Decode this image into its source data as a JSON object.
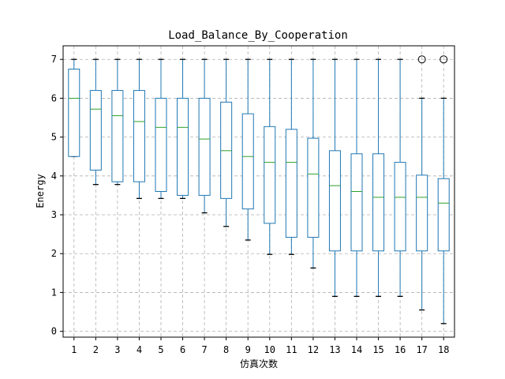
{
  "chart_data": {
    "type": "box",
    "title": "Load_Balance_By_Cooperation",
    "xlabel": "仿真次数",
    "ylabel": "Energy",
    "ylim": [
      -0.15,
      7.35
    ],
    "yticks": [
      0,
      1,
      2,
      3,
      4,
      5,
      6,
      7
    ],
    "grid": true,
    "grid_style": "dashed",
    "categories": [
      "1",
      "2",
      "3",
      "4",
      "5",
      "6",
      "7",
      "8",
      "9",
      "10",
      "11",
      "12",
      "13",
      "14",
      "15",
      "16",
      "17",
      "18"
    ],
    "boxes": [
      {
        "whislo": 4.5,
        "q1": 4.5,
        "med": 6.0,
        "q3": 6.75,
        "whishi": 7.0,
        "fliers": []
      },
      {
        "whislo": 3.78,
        "q1": 4.15,
        "med": 5.72,
        "q3": 6.2,
        "whishi": 7.0,
        "fliers": []
      },
      {
        "whislo": 3.78,
        "q1": 3.85,
        "med": 5.55,
        "q3": 6.2,
        "whishi": 7.0,
        "fliers": []
      },
      {
        "whislo": 3.42,
        "q1": 3.85,
        "med": 5.4,
        "q3": 6.2,
        "whishi": 7.0,
        "fliers": []
      },
      {
        "whislo": 3.42,
        "q1": 3.6,
        "med": 5.25,
        "q3": 6.0,
        "whishi": 7.0,
        "fliers": []
      },
      {
        "whislo": 3.42,
        "q1": 3.5,
        "med": 5.25,
        "q3": 6.0,
        "whishi": 7.0,
        "fliers": []
      },
      {
        "whislo": 3.05,
        "q1": 3.5,
        "med": 4.95,
        "q3": 6.0,
        "whishi": 7.0,
        "fliers": []
      },
      {
        "whislo": 2.7,
        "q1": 3.42,
        "med": 4.65,
        "q3": 5.9,
        "whishi": 7.0,
        "fliers": []
      },
      {
        "whislo": 2.35,
        "q1": 3.15,
        "med": 4.5,
        "q3": 5.6,
        "whishi": 7.0,
        "fliers": []
      },
      {
        "whislo": 1.98,
        "q1": 2.78,
        "med": 4.35,
        "q3": 5.27,
        "whishi": 7.0,
        "fliers": []
      },
      {
        "whislo": 1.98,
        "q1": 2.42,
        "med": 4.35,
        "q3": 5.2,
        "whishi": 7.0,
        "fliers": []
      },
      {
        "whislo": 1.63,
        "q1": 2.42,
        "med": 4.05,
        "q3": 4.97,
        "whishi": 7.0,
        "fliers": []
      },
      {
        "whislo": 0.9,
        "q1": 2.07,
        "med": 3.75,
        "q3": 4.65,
        "whishi": 7.0,
        "fliers": []
      },
      {
        "whislo": 0.9,
        "q1": 2.07,
        "med": 3.6,
        "q3": 4.57,
        "whishi": 7.0,
        "fliers": []
      },
      {
        "whislo": 0.9,
        "q1": 2.07,
        "med": 3.45,
        "q3": 4.57,
        "whishi": 7.0,
        "fliers": []
      },
      {
        "whislo": 0.9,
        "q1": 2.07,
        "med": 3.45,
        "q3": 4.35,
        "whishi": 7.0,
        "fliers": []
      },
      {
        "whislo": 0.55,
        "q1": 2.07,
        "med": 3.45,
        "q3": 4.02,
        "whishi": 6.0,
        "fliers": [
          7.0
        ]
      },
      {
        "whislo": 0.2,
        "q1": 2.07,
        "med": 3.3,
        "q3": 3.93,
        "whishi": 6.0,
        "fliers": [
          7.0
        ]
      }
    ],
    "colors": {
      "box": "#1f77b4",
      "median": "#2ca02c",
      "whisker": "#1f77b4",
      "cap": "#000000",
      "flier": "#000000",
      "grid": "#b0b0b0",
      "axis": "#000000"
    }
  }
}
